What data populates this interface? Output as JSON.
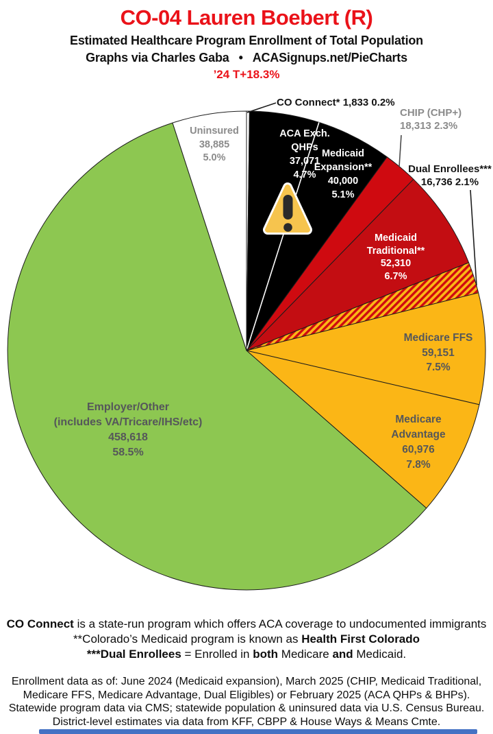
{
  "header": {
    "title": "CO-04 Lauren Boebert (R)",
    "subtitle": "Estimated Healthcare Program Enrollment of Total Population",
    "credit_left": "Graphs via Charles Gaba",
    "credit_sep": "•",
    "credit_right": "ACASignups.net/PieCharts",
    "trend": "’24 T+18.3%"
  },
  "chart_data": {
    "type": "pie",
    "title": "Estimated Healthcare Program Enrollment of Total Population",
    "start_angle_deg": -90,
    "direction": "clockwise",
    "legend_position": "labels-on-slices",
    "slices": [
      {
        "id": "co-connect",
        "label_lines": [
          "CO Connect*"
        ],
        "value": "1,833",
        "pct": "0.2%",
        "pct_num": 0.2,
        "color": "#ffffff"
      },
      {
        "id": "aca-exch-qhps",
        "label_lines": [
          "ACA Exch.",
          "QHPs"
        ],
        "value": "37,071",
        "pct": "4.7%",
        "pct_num": 4.7,
        "color": "#000000"
      },
      {
        "id": "medicaid-expansion",
        "label_lines": [
          "Medicaid",
          "Expansion**"
        ],
        "value": "40,000",
        "pct": "5.1%",
        "pct_num": 5.1,
        "color": "#000000",
        "leading_edge": "white"
      },
      {
        "id": "chip",
        "label_lines": [
          "CHIP (CHP+)"
        ],
        "value": "18,313",
        "pct": "2.3%",
        "pct_num": 2.3,
        "color": "#cf0a10"
      },
      {
        "id": "medicaid-traditional",
        "label_lines": [
          "Medicaid",
          "Traditional**"
        ],
        "value": "52,310",
        "pct": "6.7%",
        "pct_num": 6.7,
        "color": "#c30d12"
      },
      {
        "id": "dual-enrollees",
        "label_lines": [
          "Dual Enrollees***"
        ],
        "value": "16,736",
        "pct": "2.1%",
        "pct_num": 2.1,
        "color": "stripes"
      },
      {
        "id": "medicare-ffs",
        "label_lines": [
          "Medicare FFS"
        ],
        "value": "59,151",
        "pct": "7.5%",
        "pct_num": 7.5,
        "color": "#fbb616"
      },
      {
        "id": "medicare-advantage",
        "label_lines": [
          "Medicare",
          "Advantage"
        ],
        "value": "60,976",
        "pct": "7.8%",
        "pct_num": 7.8,
        "color": "#fbb616"
      },
      {
        "id": "employer-other",
        "label_lines": [
          "Employer/Other",
          "(includes VA/Tricare/IHS/etc)"
        ],
        "value": "458,618",
        "pct": "58.5%",
        "pct_num": 58.5,
        "color": "#8dc751"
      },
      {
        "id": "uninsured",
        "label_lines": [
          "Uninsured"
        ],
        "value": "38,885",
        "pct": "5.0%",
        "pct_num": 5.0,
        "color": "#ffffff"
      }
    ],
    "stripe_pattern": {
      "color_a": "#fbb616",
      "color_b": "#cf0a10"
    }
  },
  "warning_icon": {
    "name": "warning-triangle",
    "fill": "#f6c44e",
    "halo": "#ffffff",
    "mark_color": "#2a2a2a"
  },
  "footer": {
    "note_lines": [
      [
        {
          "t": "CO Connect",
          "b": true
        },
        {
          "t": " is a state-run program which offers ACA coverage to undocumented immigrants",
          "b": false
        }
      ],
      [
        {
          "t": "**Colorado’s Medicaid program is known as ",
          "b": false
        },
        {
          "t": "Health First Colorado",
          "b": true
        }
      ],
      [
        {
          "t": "***Dual Enrollees",
          "b": true
        },
        {
          "t": " = Enrolled in ",
          "b": false
        },
        {
          "t": "both",
          "b": true
        },
        {
          "t": " Medicare ",
          "b": false
        },
        {
          "t": "and",
          "b": true
        },
        {
          "t": " Medicaid.",
          "b": false
        }
      ]
    ],
    "source_lines": [
      "Enrollment data as of: June 2024 (Medicaid expansion), March 2025 (CHIP, Medicaid Traditional,",
      "Medicare FFS, Medicare Advantage, Dual Eligibles) or February 2025 (ACA QHPs & BHPs).",
      "Statewide program data via CMS; statewide population & uninsured data via U.S. Census Bureau.",
      "District-level estimates via data from KFF, CBPP & House Ways & Means Cmte."
    ]
  },
  "colors": {
    "title_red": "#ea1219",
    "pie_green": "#8dc751",
    "pie_gold": "#fbb616",
    "pie_red_chip": "#cf0a10",
    "pie_red_traditional": "#c30d12",
    "slice_outline": "#1c1c1c",
    "bottom_bar_blue": "#4472c4"
  }
}
